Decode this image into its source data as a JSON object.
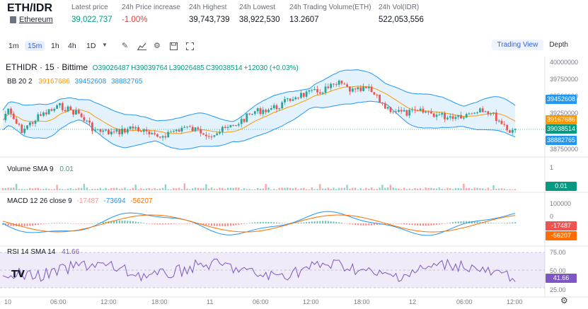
{
  "header": {
    "pair": "ETH/IDR",
    "coin_link": "Ethereum",
    "stats": [
      {
        "label": "Latest price",
        "value": "39,022,737",
        "tone": "green"
      },
      {
        "label": "24h Price increase",
        "value": "-1.00%",
        "tone": "red"
      },
      {
        "label": "24h Highest",
        "value": "39,743,739",
        "tone": "normal"
      },
      {
        "label": "24h Lowest",
        "value": "38,922,530",
        "tone": "normal"
      },
      {
        "label": "24h Trading Volume(ETH)",
        "value": "13.2607",
        "tone": "normal"
      },
      {
        "label": "24h Vol(IDR)",
        "value": "522,053,556",
        "tone": "normal"
      }
    ]
  },
  "toolbar": {
    "timeframes": [
      "1m",
      "15m",
      "1h",
      "4h",
      "1D"
    ],
    "active_timeframe": "15m",
    "dropdown_icon": "chevron-down-icon",
    "tools": [
      "pencil-icon",
      "line-chart-icon",
      "gear-icon",
      "save-icon",
      "fullscreen-icon"
    ],
    "tabs": [
      "Trading View",
      "Depth"
    ],
    "active_tab": "Trading View"
  },
  "chart": {
    "symbol": "ETHIDR · 15 · Bittime",
    "ohlc": {
      "o": "O39026487",
      "h": "H39039764",
      "l": "L39026485",
      "c": "C39038514",
      "change": "+12030 (+0.03%)"
    },
    "bb": {
      "label": "BB 20 2",
      "basis": "39167686",
      "upper": "39452608",
      "lower": "38882765"
    },
    "volume": {
      "label": "Volume SMA 9",
      "value": "0.01"
    },
    "macd": {
      "label": "MACD 12 26 close 9",
      "hist": "-17487",
      "macd": "-73694",
      "signal": "-56207"
    },
    "rsi": {
      "label": "RSI 14 SMA 14",
      "value": "41.66"
    },
    "price_axis": [
      "40000000",
      "39750000",
      "39500000",
      "39250000",
      "38750000"
    ],
    "price_tags": {
      "upper": "39452608",
      "basis": "39167686",
      "last": "39038514",
      "lower": "38882765"
    },
    "volume_axis": [
      "1"
    ],
    "volume_tag": "0.01",
    "macd_axis": [
      "100000",
      "0"
    ],
    "macd_tags": {
      "hist": "-17487",
      "signal": "-56207"
    },
    "rsi_axis": [
      "75.00",
      "50.00",
      "25.00"
    ],
    "rsi_tag": "41.66",
    "time_axis": [
      "10",
      "06:00",
      "12:00",
      "18:00",
      "11",
      "06:00",
      "12:00",
      "18:00",
      "12",
      "06:00",
      "12:00"
    ],
    "colors": {
      "up": "#26a69a",
      "down": "#ef5350",
      "bb_band": "#2196f3",
      "bb_basis": "#ff9800",
      "rsi": "#7e57c2"
    }
  }
}
